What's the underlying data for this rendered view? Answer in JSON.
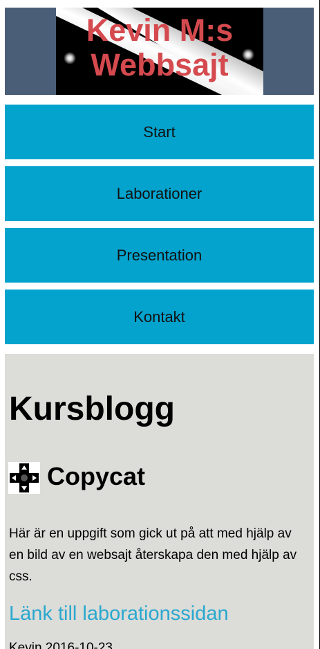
{
  "header": {
    "logo_text": "Kevin M:s Webbsajt",
    "colors": {
      "banner": "#4b5e78",
      "logo_text": "#d44a4e"
    }
  },
  "nav": {
    "items": [
      {
        "label": "Start"
      },
      {
        "label": "Laborationer"
      },
      {
        "label": "Presentation"
      },
      {
        "label": "Kontakt"
      }
    ],
    "color": "#03a3cd"
  },
  "main": {
    "heading": "Kursblogg",
    "post": {
      "icon": "dpad-icon",
      "title": "Copycat",
      "body": "Här är en uppgift som gick ut på att med hjälp av en bild av en websajt återskapa den med hjälp av css.",
      "link_text": "Länk till laborationssidan",
      "meta": "Kevin 2016-10-23"
    }
  }
}
